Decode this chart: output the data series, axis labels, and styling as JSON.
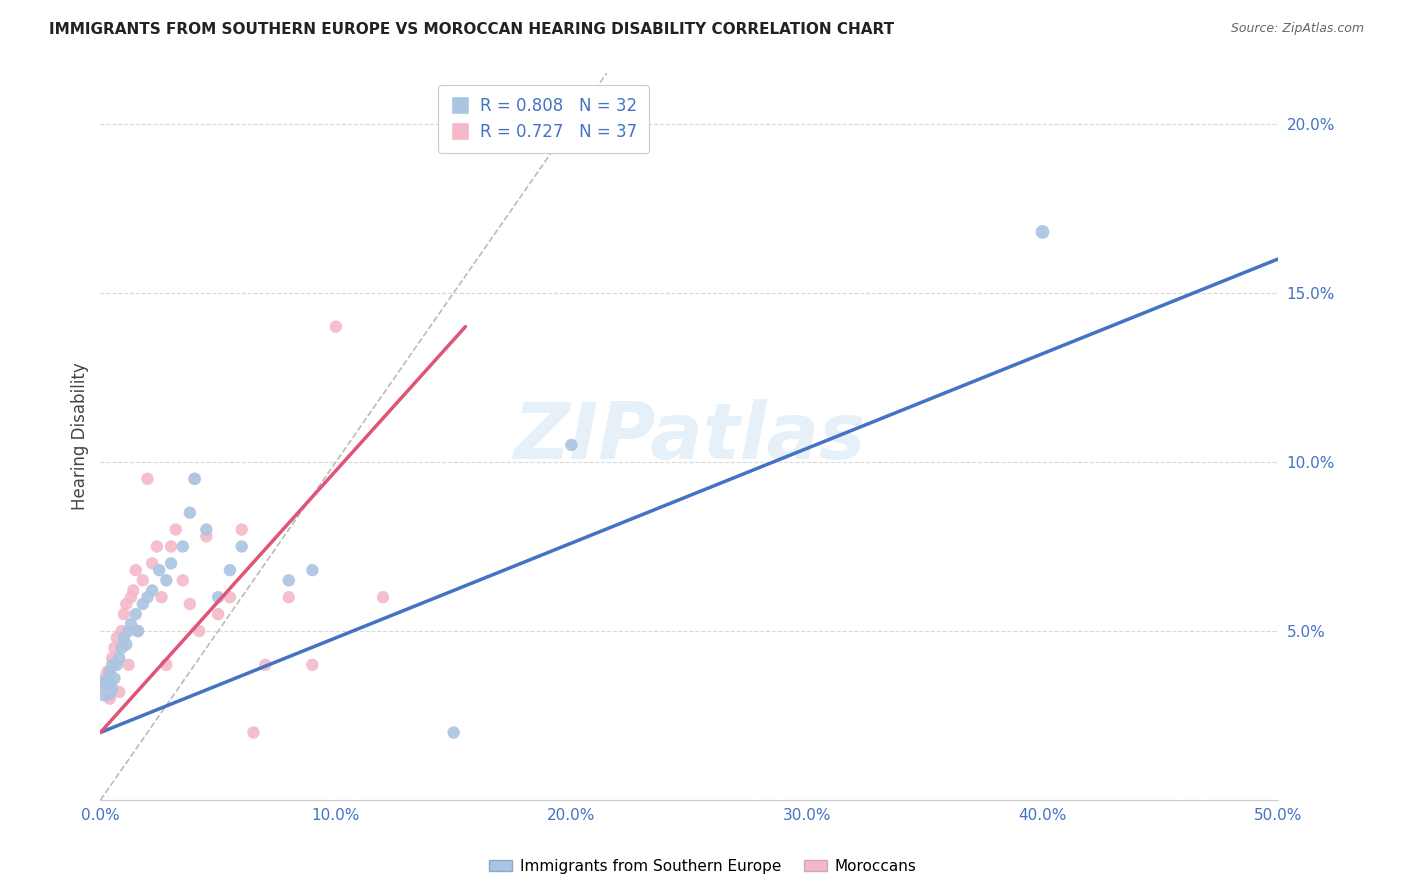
{
  "title": "IMMIGRANTS FROM SOUTHERN EUROPE VS MOROCCAN HEARING DISABILITY CORRELATION CHART",
  "source": "Source: ZipAtlas.com",
  "ylabel": "Hearing Disability",
  "watermark": "ZIPatlas",
  "xlim": [
    0.0,
    0.5
  ],
  "ylim": [
    0.0,
    0.215
  ],
  "xticks": [
    0.0,
    0.1,
    0.2,
    0.3,
    0.4,
    0.5
  ],
  "xtick_labels": [
    "0.0%",
    "10.0%",
    "20.0%",
    "30.0%",
    "40.0%",
    "50.0%"
  ],
  "yticks": [
    0.0,
    0.05,
    0.1,
    0.15,
    0.2
  ],
  "ytick_labels": [
    "",
    "5.0%",
    "10.0%",
    "15.0%",
    "20.0%"
  ],
  "blue_R": 0.808,
  "blue_N": 32,
  "pink_R": 0.727,
  "pink_N": 37,
  "blue_color": "#aac4e2",
  "pink_color": "#f4b8c8",
  "blue_line_color": "#4472c4",
  "pink_line_color": "#e05575",
  "diagonal_color": "#bbbbbb",
  "legend_label_blue": "Immigrants from Southern Europe",
  "legend_label_pink": "Moroccans",
  "blue_line_x0": 0.0,
  "blue_line_y0": 0.02,
  "blue_line_x1": 0.5,
  "blue_line_y1": 0.16,
  "pink_line_x0": 0.0,
  "pink_line_y0": 0.02,
  "pink_line_x1": 0.155,
  "pink_line_y1": 0.14,
  "blue_scatter_x": [
    0.002,
    0.003,
    0.004,
    0.005,
    0.006,
    0.007,
    0.008,
    0.009,
    0.01,
    0.011,
    0.012,
    0.013,
    0.015,
    0.016,
    0.018,
    0.02,
    0.022,
    0.025,
    0.028,
    0.03,
    0.035,
    0.038,
    0.04,
    0.045,
    0.05,
    0.055,
    0.06,
    0.08,
    0.09,
    0.15,
    0.2,
    0.4
  ],
  "blue_scatter_y": [
    0.033,
    0.035,
    0.038,
    0.04,
    0.036,
    0.04,
    0.042,
    0.045,
    0.048,
    0.046,
    0.05,
    0.052,
    0.055,
    0.05,
    0.058,
    0.06,
    0.062,
    0.068,
    0.065,
    0.07,
    0.075,
    0.085,
    0.095,
    0.08,
    0.06,
    0.068,
    0.075,
    0.065,
    0.068,
    0.02,
    0.105,
    0.168
  ],
  "pink_scatter_x": [
    0.002,
    0.003,
    0.004,
    0.005,
    0.006,
    0.007,
    0.008,
    0.009,
    0.01,
    0.011,
    0.012,
    0.013,
    0.014,
    0.015,
    0.016,
    0.018,
    0.02,
    0.022,
    0.024,
    0.026,
    0.028,
    0.03,
    0.032,
    0.035,
    0.038,
    0.04,
    0.042,
    0.045,
    0.05,
    0.055,
    0.06,
    0.065,
    0.07,
    0.08,
    0.09,
    0.1,
    0.12
  ],
  "pink_scatter_y": [
    0.035,
    0.038,
    0.03,
    0.042,
    0.045,
    0.048,
    0.032,
    0.05,
    0.055,
    0.058,
    0.04,
    0.06,
    0.062,
    0.068,
    0.05,
    0.065,
    0.095,
    0.07,
    0.075,
    0.06,
    0.04,
    0.075,
    0.08,
    0.065,
    0.058,
    0.095,
    0.05,
    0.078,
    0.055,
    0.06,
    0.08,
    0.02,
    0.04,
    0.06,
    0.04,
    0.14,
    0.06
  ],
  "blue_scatter_sizes": [
    350,
    100,
    80,
    80,
    80,
    80,
    80,
    80,
    80,
    80,
    80,
    80,
    80,
    80,
    80,
    80,
    80,
    80,
    80,
    80,
    80,
    80,
    80,
    80,
    80,
    80,
    80,
    80,
    80,
    80,
    80,
    100
  ],
  "pink_scatter_sizes": [
    200,
    80,
    80,
    80,
    80,
    80,
    80,
    80,
    80,
    80,
    80,
    80,
    80,
    80,
    80,
    80,
    80,
    80,
    80,
    80,
    80,
    80,
    80,
    80,
    80,
    80,
    80,
    80,
    80,
    80,
    80,
    80,
    80,
    80,
    80,
    80,
    80
  ]
}
